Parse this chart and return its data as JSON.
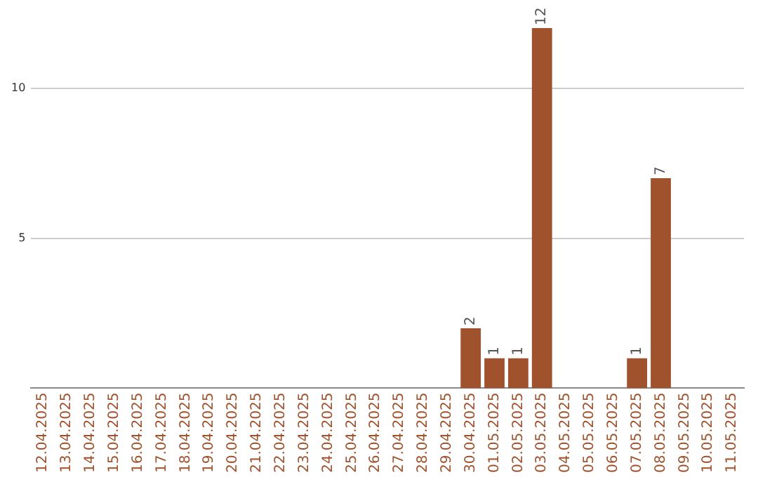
{
  "chart_data": {
    "type": "bar",
    "categories": [
      "12.04.2025",
      "13.04.2025",
      "14.04.2025",
      "15.04.2025",
      "16.04.2025",
      "17.04.2025",
      "18.04.2025",
      "19.04.2025",
      "20.04.2025",
      "21.04.2025",
      "22.04.2025",
      "23.04.2025",
      "24.04.2025",
      "25.04.2025",
      "26.04.2025",
      "27.04.2025",
      "28.04.2025",
      "29.04.2025",
      "30.04.2025",
      "01.05.2025",
      "02.05.2025",
      "03.05.2025",
      "04.05.2025",
      "05.05.2025",
      "06.05.2025",
      "07.05.2025",
      "08.05.2025",
      "09.05.2025",
      "10.05.2025",
      "11.05.2025"
    ],
    "values": [
      0,
      0,
      0,
      0,
      0,
      0,
      0,
      0,
      0,
      0,
      0,
      0,
      0,
      0,
      0,
      0,
      0,
      0,
      2,
      1,
      1,
      12,
      0,
      0,
      0,
      1,
      7,
      0,
      0,
      0
    ],
    "value_labels": [
      null,
      null,
      null,
      null,
      null,
      null,
      null,
      null,
      null,
      null,
      null,
      null,
      null,
      null,
      null,
      null,
      null,
      null,
      "2",
      "1",
      "1",
      "12",
      null,
      null,
      null,
      "1",
      "7",
      null,
      null,
      null
    ],
    "color": "#a0522d",
    "ylim": [
      0,
      12
    ],
    "yticks": [
      5,
      10
    ],
    "grid": "y",
    "legend": false
  }
}
